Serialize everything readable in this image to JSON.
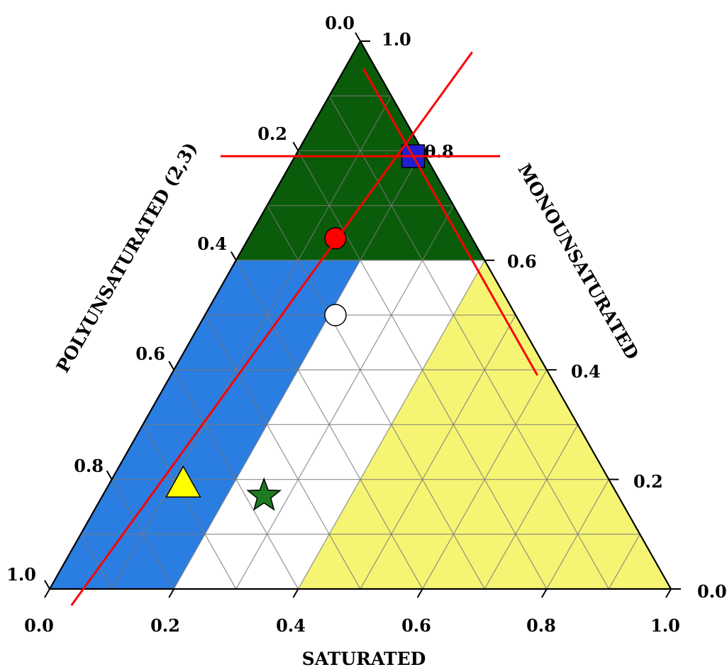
{
  "chart_data": {
    "type": "ternary",
    "axes": {
      "bottom": {
        "label": "SATURATED",
        "ticks": [
          "0.0",
          "0.2",
          "0.4",
          "0.6",
          "0.8",
          "1.0"
        ]
      },
      "right": {
        "label": "MONOUNSATURATED",
        "ticks": [
          "0.0",
          "0.2",
          "0.4",
          "0.6",
          "0.8",
          "1.0"
        ]
      },
      "left": {
        "label": "POLYUNSATURATED (2,3)",
        "ticks": [
          "1.0",
          "0.8",
          "0.6",
          "0.4",
          "0.2",
          "0.0"
        ]
      }
    },
    "grid": true,
    "grid_step": 0.1,
    "regions": [
      {
        "color": "#0a5c0a",
        "condition": "monounsaturated >= 0.6"
      },
      {
        "color": "#2a7de1",
        "condition": "monounsaturated < 0.6 and saturated < 0.2"
      },
      {
        "color": "#f6f573",
        "condition": "monounsaturated < 0.6 and saturated > 0.4"
      },
      {
        "color": "#ffffff",
        "condition": "monounsaturated < 0.6 and 0.2 <= saturated <= 0.4"
      }
    ],
    "points": [
      {
        "marker": "square",
        "color": "#1f1fd0",
        "saturated": 0.19,
        "monounsaturated": 0.79,
        "polyunsaturated": 0.02
      },
      {
        "marker": "circle",
        "color": "#ff0000",
        "saturated": 0.14,
        "monounsaturated": 0.64,
        "polyunsaturated": 0.22
      },
      {
        "marker": "circle",
        "color": "#ffffff",
        "saturated": 0.21,
        "monounsaturated": 0.5,
        "polyunsaturated": 0.29
      },
      {
        "marker": "triangle",
        "color": "#ffff00",
        "saturated": 0.12,
        "monounsaturated": 0.19,
        "polyunsaturated": 0.69
      },
      {
        "marker": "star",
        "color": "#1e7a1e",
        "saturated": 0.26,
        "monounsaturated": 0.17,
        "polyunsaturated": 0.57
      }
    ],
    "annotation_lines": [
      {
        "color": "#ff0000",
        "note": "horizontal line through blue square",
        "constant": "monounsaturated",
        "value": 0.79,
        "saturated_range": [
          -0.12,
          0.33
        ]
      },
      {
        "color": "#ff0000",
        "note": "line parallel to right edge through blue square",
        "constant": "polyunsaturated",
        "value": 0.02,
        "monounsaturated_range": [
          0.39,
          0.95
        ]
      },
      {
        "color": "#ff0000",
        "note": "line through blue square and bottom-left",
        "from": {
          "saturated": 0.05,
          "monounsaturated": -0.03
        },
        "to": {
          "saturated": 0.19,
          "monounsaturated": 0.98
        }
      }
    ]
  }
}
